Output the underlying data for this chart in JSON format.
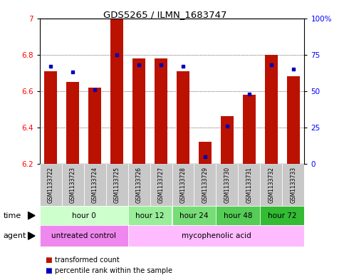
{
  "title": "GDS5265 / ILMN_1683747",
  "samples": [
    "GSM1133722",
    "GSM1133723",
    "GSM1133724",
    "GSM1133725",
    "GSM1133726",
    "GSM1133727",
    "GSM1133728",
    "GSM1133729",
    "GSM1133730",
    "GSM1133731",
    "GSM1133732",
    "GSM1133733"
  ],
  "transformed_counts": [
    6.71,
    6.65,
    6.62,
    7.0,
    6.78,
    6.78,
    6.71,
    6.32,
    6.46,
    6.58,
    6.8,
    6.68
  ],
  "percentile_ranks": [
    67,
    63,
    51,
    75,
    68,
    68,
    67,
    5,
    26,
    48,
    68,
    65
  ],
  "ymin": 6.2,
  "ymax": 7.0,
  "yright_min": 0,
  "yright_max": 100,
  "yticks_left": [
    6.2,
    6.4,
    6.6,
    6.8,
    7.0
  ],
  "ytick_labels_left": [
    "6.2",
    "6.4",
    "6.6",
    "6.8",
    "7"
  ],
  "yticks_right": [
    0,
    25,
    50,
    75,
    100
  ],
  "ytick_labels_right": [
    "0",
    "25",
    "50",
    "75",
    "100%"
  ],
  "bar_color": "#bb1100",
  "percentile_color": "#0000bb",
  "time_groups": [
    {
      "label": "hour 0",
      "start": 0,
      "end": 3,
      "color": "#ccffcc"
    },
    {
      "label": "hour 12",
      "start": 4,
      "end": 5,
      "color": "#99ee99"
    },
    {
      "label": "hour 24",
      "start": 6,
      "end": 7,
      "color": "#77dd77"
    },
    {
      "label": "hour 48",
      "start": 8,
      "end": 9,
      "color": "#55cc55"
    },
    {
      "label": "hour 72",
      "start": 10,
      "end": 11,
      "color": "#33bb33"
    }
  ],
  "agent_groups": [
    {
      "label": "untreated control",
      "start": 0,
      "end": 3,
      "color": "#ee88ee"
    },
    {
      "label": "mycophenolic acid",
      "start": 4,
      "end": 11,
      "color": "#ffbbff"
    }
  ],
  "sample_bg_color": "#c8c8c8",
  "bar_width": 0.6,
  "legend_items": [
    {
      "label": "transformed count",
      "color": "#bb1100"
    },
    {
      "label": "percentile rank within the sample",
      "color": "#0000bb"
    }
  ]
}
